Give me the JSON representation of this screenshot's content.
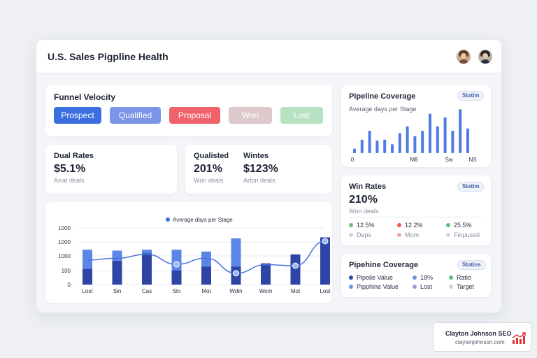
{
  "header": {
    "title": "U.S. Sales Pigpline Health"
  },
  "funnel": {
    "title": "Funnel Velocity",
    "stages": [
      {
        "label": "Prospect",
        "bg": "#3b6fe0",
        "fg": "#ffffff"
      },
      {
        "label": "Qualified",
        "bg": "#7b96e6",
        "fg": "#ffffff"
      },
      {
        "label": "Proposal",
        "bg": "#f0636c",
        "fg": "#ffffff"
      },
      {
        "label": "Won",
        "bg": "#ddc9cc",
        "fg": "#ffffff"
      },
      {
        "label": "Lost",
        "bg": "#b6e2c1",
        "fg": "#ffffff"
      }
    ]
  },
  "dual_rates": {
    "title": "Dual Rates",
    "value": "$5.1%",
    "sub": "Arrat deals"
  },
  "qualisted": {
    "title": "Qualisted",
    "value": "201%",
    "sub": "Won deals"
  },
  "wintes": {
    "title": "Wintes",
    "value": "$123%",
    "sub": "Arton deals"
  },
  "main_chart": {
    "legend": "Average days per Stage",
    "y_ticks": [
      "1000",
      "1000",
      "1000",
      "100",
      "0"
    ],
    "categories": [
      "Lost",
      "Sin",
      "Cas",
      "Slo",
      "Mot",
      "Wdin",
      "Wom",
      "Mot",
      "Lost"
    ]
  },
  "coverage_top": {
    "title": "Pipeline Coverage",
    "badge": "Statim",
    "subtitle": "Average days per Stage",
    "x_labels": [
      "0",
      "M8",
      "Sw",
      "NS"
    ]
  },
  "win_rates": {
    "title": "Win Rates",
    "badge": "Statim",
    "value": "210%",
    "sub": "Won deals",
    "stats": [
      {
        "value": "12.5%",
        "label": "Deps",
        "color": "#5cc27a"
      },
      {
        "value": "12.2%",
        "label": "Mom",
        "color": "#ef5b5b"
      },
      {
        "value": "25.5%",
        "label": "Fiopused",
        "color": "#5cc27a"
      }
    ]
  },
  "coverage_bottom": {
    "title": "Pipehine Coverage",
    "badge": "Statios",
    "items": [
      {
        "label": "Pipolie Value",
        "color": "#2e4aa8"
      },
      {
        "label": "18%",
        "color": "#6f8fe6"
      },
      {
        "label": "Ratio",
        "color": "#5cc27a"
      },
      {
        "label": "Pipphine Value",
        "color": "#6f8fe6"
      },
      {
        "label": "Lost",
        "color": "#9d9ad6"
      },
      {
        "label": "Target",
        "color": "#cfd3dc"
      }
    ]
  },
  "brand": {
    "name": "Clayton Johnson SEO",
    "url": "claytonjohnson.com"
  },
  "chart_data": [
    {
      "type": "bar",
      "legend": [
        "Average days per Stage"
      ],
      "categories": [
        "Lost",
        "Sin",
        "Cas",
        "Slo",
        "Mot",
        "Wdin",
        "Wom",
        "Mot",
        "Lost"
      ],
      "series": [
        {
          "values": [
            740,
            720,
            740,
            740,
            700,
            980,
            0,
            0,
            0
          ],
          "color": "#5b86e8"
        },
        {
          "values": [
            330,
            500,
            660,
            300,
            380,
            380,
            450,
            640,
            1000
          ],
          "color": "#2e45a6"
        }
      ],
      "line": [
        520,
        560,
        640,
        430,
        560,
        240,
        420,
        400,
        920
      ],
      "ylim": [
        0,
        1200
      ]
    },
    {
      "type": "bar",
      "subtitle": "Average days per Stage",
      "x_labels": [
        "0",
        "M8",
        "Sw",
        "NS"
      ],
      "values": [
        10,
        30,
        50,
        28,
        30,
        20,
        45,
        60,
        38,
        50,
        88,
        60,
        80,
        50,
        98,
        55
      ],
      "ylim": [
        0,
        100
      ]
    }
  ]
}
